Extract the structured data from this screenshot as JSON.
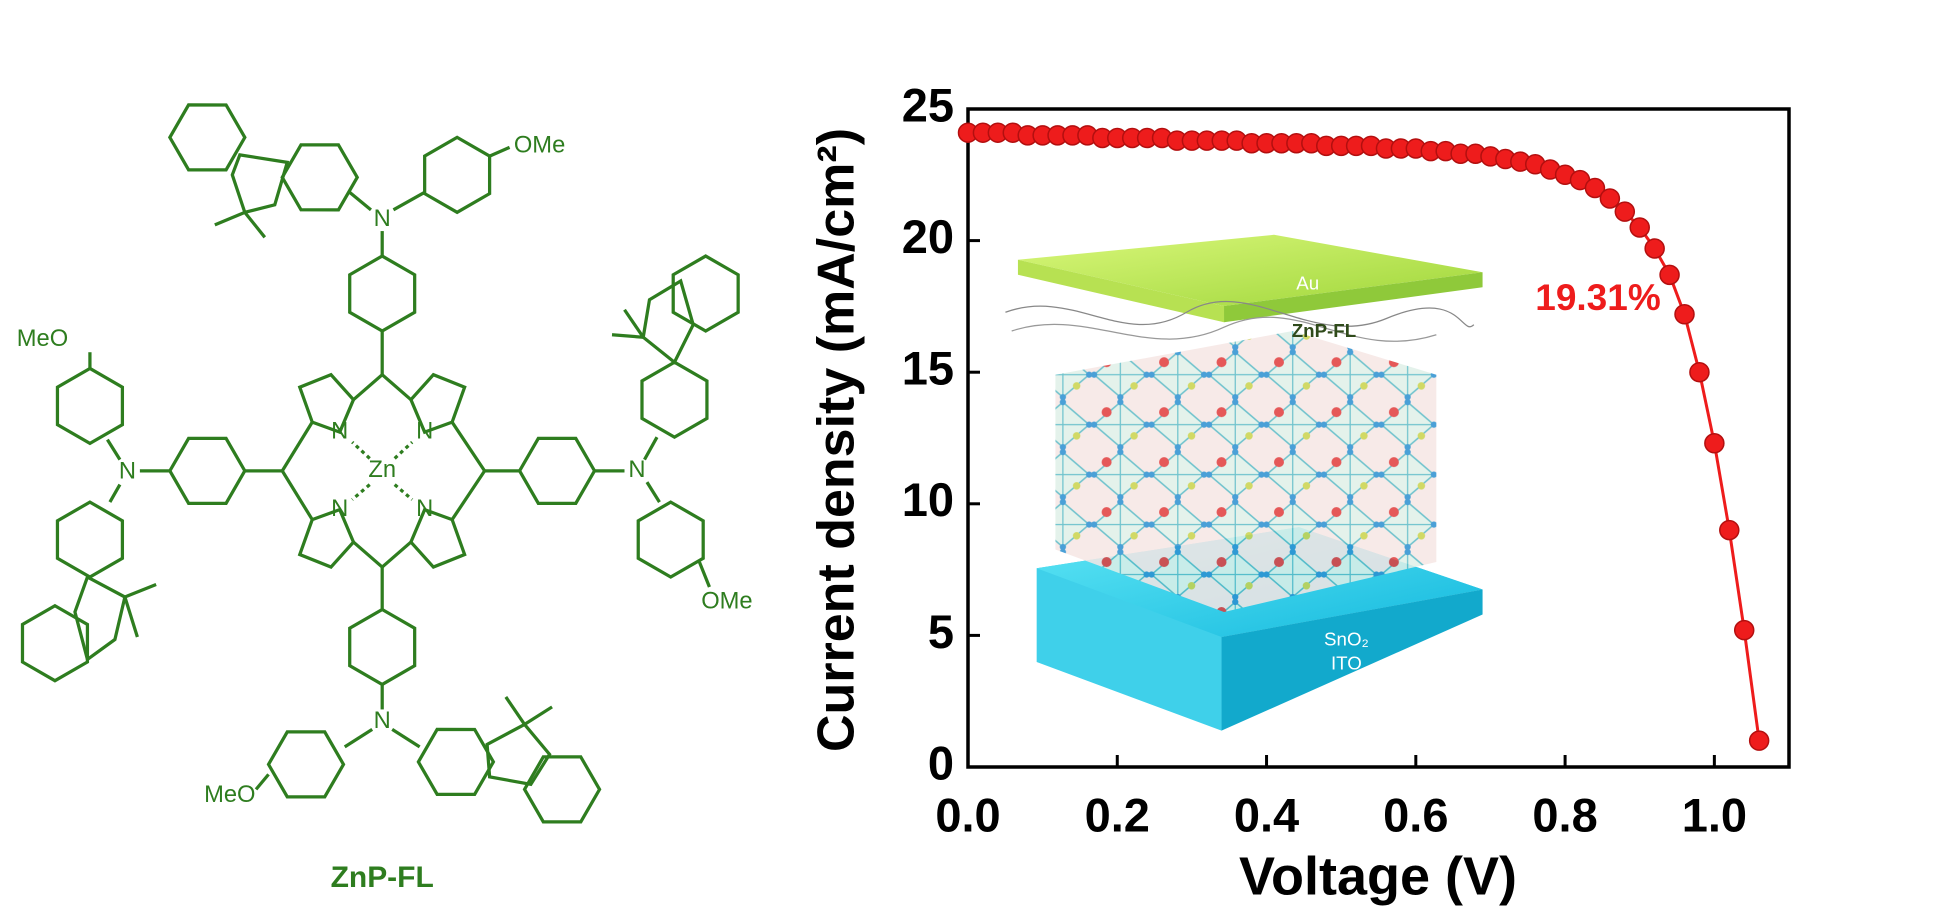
{
  "chart_data": {
    "type": "line",
    "xlabel": "Voltage (V)",
    "ylabel": "Current density (mA/cm²)",
    "annotation": "19.31%",
    "inset_labels": {
      "top_electrode": "Au",
      "htm": "ZnP-FL",
      "etl": "SnO₂",
      "substrate": "ITO"
    },
    "color": "#ee1c1c",
    "x": [
      0,
      0.02,
      0.04,
      0.06,
      0.08,
      0.1,
      0.12,
      0.14,
      0.16,
      0.18,
      0.2,
      0.22,
      0.24,
      0.26,
      0.28,
      0.3,
      0.32,
      0.34,
      0.36,
      0.38,
      0.4,
      0.42,
      0.44,
      0.46,
      0.48,
      0.5,
      0.52,
      0.54,
      0.56,
      0.58,
      0.6,
      0.62,
      0.64,
      0.66,
      0.68,
      0.7,
      0.72,
      0.74,
      0.76,
      0.78,
      0.8,
      0.82,
      0.84,
      0.86,
      0.88,
      0.9,
      0.92,
      0.94,
      0.96,
      0.98,
      1.0,
      1.02,
      1.04,
      1.06
    ],
    "values": [
      24.1,
      24.1,
      24.1,
      24.1,
      24.0,
      24.0,
      24.0,
      24.0,
      24.0,
      23.9,
      23.9,
      23.9,
      23.9,
      23.9,
      23.8,
      23.8,
      23.8,
      23.8,
      23.8,
      23.7,
      23.7,
      23.7,
      23.7,
      23.7,
      23.6,
      23.6,
      23.6,
      23.6,
      23.5,
      23.5,
      23.5,
      23.4,
      23.4,
      23.3,
      23.3,
      23.2,
      23.1,
      23.0,
      22.9,
      22.7,
      22.5,
      22.3,
      22.0,
      21.6,
      21.1,
      20.5,
      19.7,
      18.7,
      17.2,
      15.0,
      12.3,
      9.0,
      5.2,
      1.0
    ],
    "xlim": [
      0,
      1.1
    ],
    "ylim": [
      0,
      25
    ],
    "xticks": [
      {
        "value": 0,
        "label": "0.0"
      },
      0.2,
      0.4,
      0.6,
      0.8,
      {
        "value": 1,
        "label": "1.0"
      }
    ],
    "yticks": [
      0,
      5,
      10,
      15,
      20,
      25
    ]
  },
  "molecule": {
    "name": "ZnP-FL",
    "metal": "Zn",
    "nitrogen": "N",
    "methoxy_right": "OMe",
    "methoxy_left": "MeO"
  }
}
